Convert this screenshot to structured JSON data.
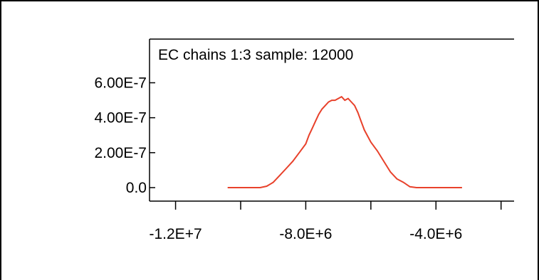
{
  "chart_data": {
    "type": "line",
    "title": "EC chains 1:3 sample: 12000",
    "xlabel": "",
    "ylabel": "",
    "xlim": [
      -12800000,
      -1600000
    ],
    "ylim": [
      0,
      8.5e-07
    ],
    "x_ticks": [
      {
        "value": -12000000,
        "label": "-1.2E+7"
      },
      {
        "value": -10000000,
        "label": ""
      },
      {
        "value": -8000000,
        "label": "-8.0E+6"
      },
      {
        "value": -6000000,
        "label": ""
      },
      {
        "value": -4000000,
        "label": "-4.0E+6"
      },
      {
        "value": -2000000,
        "label": ""
      }
    ],
    "y_ticks": [
      {
        "value": 0,
        "label": "0.0"
      },
      {
        "value": 2e-07,
        "label": "2.00E-7"
      },
      {
        "value": 4e-07,
        "label": "4.00E-7"
      },
      {
        "value": 6e-07,
        "label": "6.00E-7"
      }
    ],
    "grid": false,
    "line_color": "#e8412b",
    "series": [
      {
        "x": [
          -10400000,
          -9400000,
          -9200000,
          -9000000,
          -8800000,
          -8600000,
          -8400000,
          -8200000,
          -8000000,
          -7900000,
          -7800000,
          -7700000,
          -7600000,
          -7500000,
          -7400000,
          -7300000,
          -7200000,
          -7100000,
          -7000000,
          -6900000,
          -6800000,
          -6700000,
          -6600000,
          -6500000,
          -6400000,
          -6300000,
          -6200000,
          -6000000,
          -5800000,
          -5600000,
          -5400000,
          -5200000,
          -5000000,
          -4800000,
          -4600000,
          -3200000
        ],
        "y": [
          0,
          0,
          8e-09,
          3e-08,
          7e-08,
          1.1e-07,
          1.5e-07,
          2e-07,
          2.5e-07,
          3e-07,
          3.4e-07,
          3.8e-07,
          4.2e-07,
          4.5e-07,
          4.7e-07,
          4.9e-07,
          5e-07,
          5e-07,
          5.1e-07,
          5.2e-07,
          5e-07,
          5.1e-07,
          4.9e-07,
          4.7e-07,
          4.3e-07,
          3.8e-07,
          3.3e-07,
          2.6e-07,
          2.1e-07,
          1.5e-07,
          9e-08,
          5e-08,
          3e-08,
          5e-09,
          0,
          0
        ]
      }
    ]
  }
}
